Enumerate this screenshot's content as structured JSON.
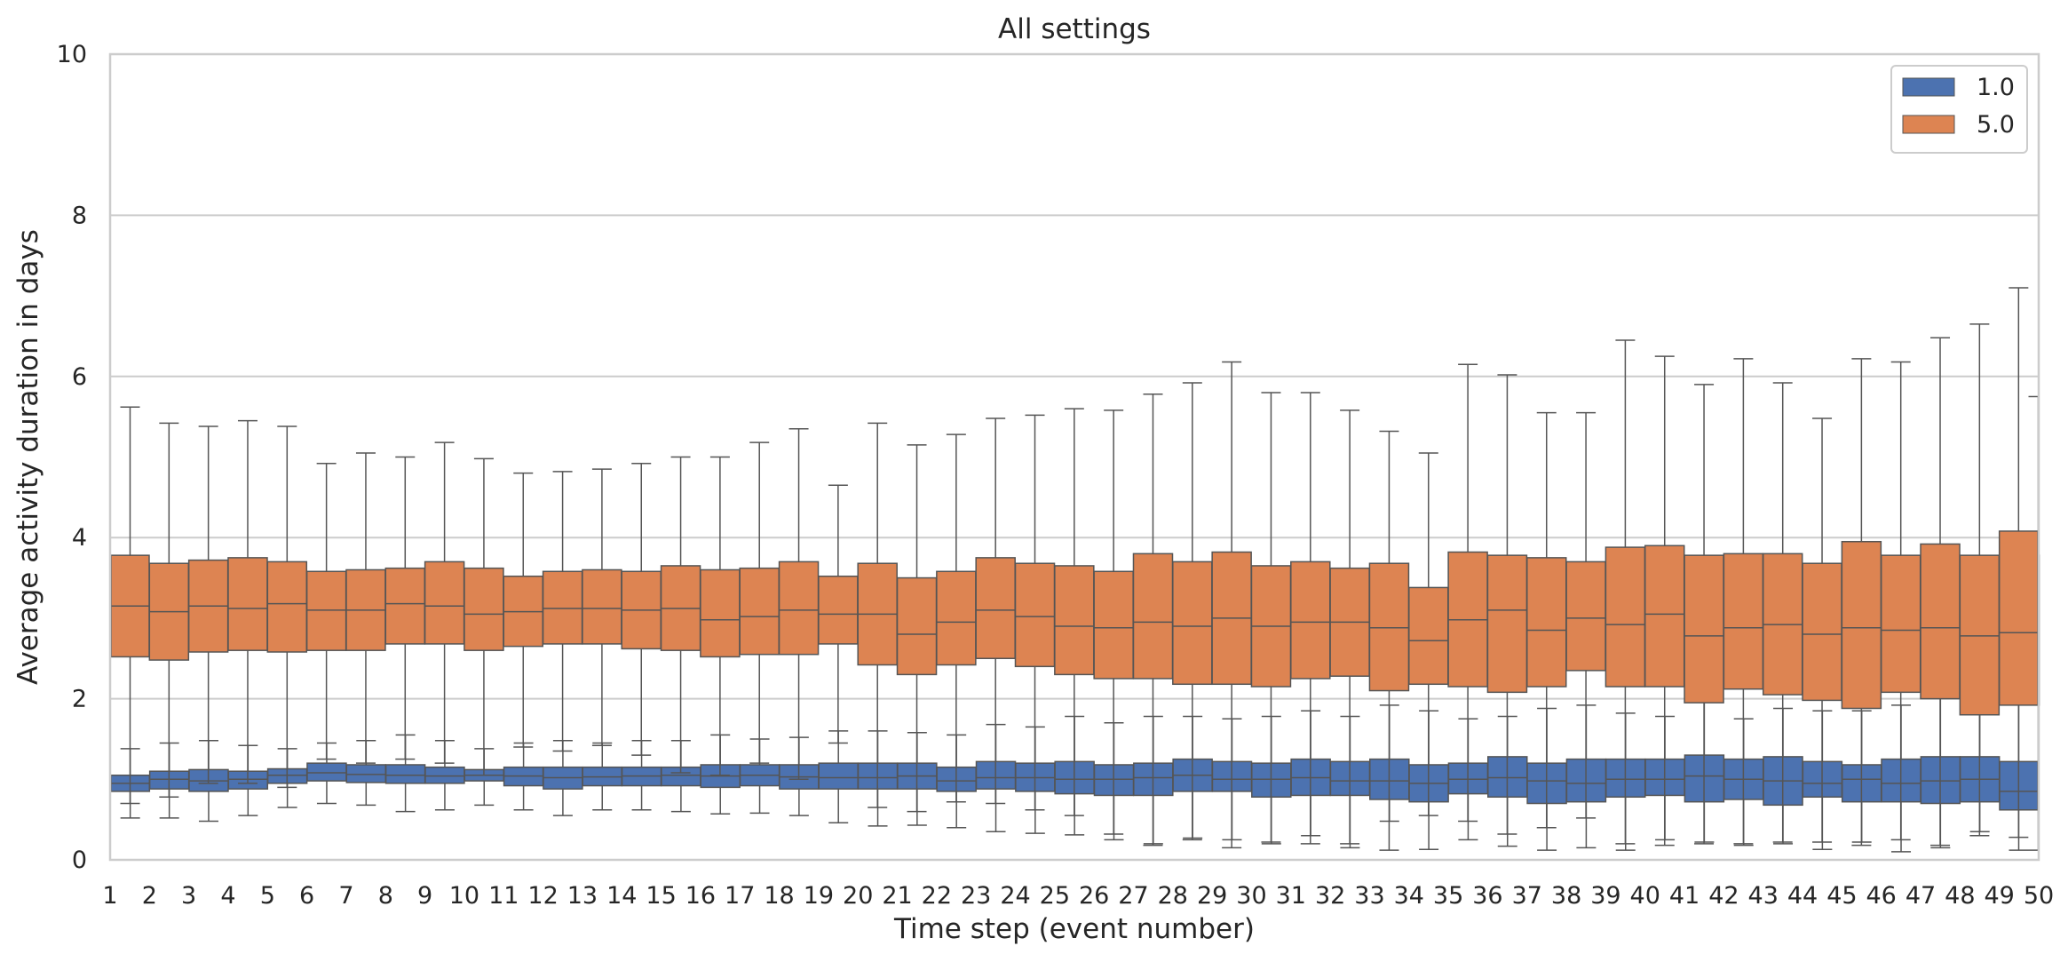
{
  "chart_data": {
    "type": "box",
    "title": "All settings",
    "xlabel": "Time step (event number)",
    "ylabel": "Average activity duration in days",
    "ylim": [
      0,
      10
    ],
    "yticks": [
      0,
      2,
      4,
      6,
      8,
      10
    ],
    "grid": "horizontal",
    "legend_position": "top-right",
    "categories": [
      "1",
      "2",
      "3",
      "4",
      "5",
      "6",
      "7",
      "8",
      "9",
      "10",
      "11",
      "12",
      "13",
      "14",
      "15",
      "16",
      "17",
      "18",
      "19",
      "20",
      "21",
      "22",
      "23",
      "24",
      "25",
      "26",
      "27",
      "28",
      "29",
      "30",
      "31",
      "32",
      "33",
      "34",
      "35",
      "36",
      "37",
      "38",
      "39",
      "40",
      "41",
      "42",
      "43",
      "44",
      "45",
      "46",
      "47",
      "48",
      "49",
      "50"
    ],
    "series": [
      {
        "name": "1.0",
        "color": "#4c72b0",
        "whisker_low": [
          1.0,
          0.52,
          0.52,
          0.48,
          0.55,
          0.65,
          0.7,
          0.68,
          0.6,
          0.62,
          0.68,
          0.62,
          0.55,
          0.62,
          0.62,
          0.6,
          0.57,
          0.58,
          0.55,
          0.46,
          0.42,
          0.43,
          0.4,
          0.35,
          0.33,
          0.31,
          0.25,
          0.2,
          0.27,
          0.25,
          0.2,
          0.3,
          0.15,
          0.48,
          0.13,
          0.25,
          0.17,
          0.12,
          0.15,
          0.12,
          0.25,
          0.22,
          0.18,
          0.2,
          0.13,
          0.22,
          0.1,
          0.15,
          0.35,
          0.12
        ],
        "q1": [
          1.0,
          0.85,
          0.88,
          0.85,
          0.88,
          0.95,
          0.98,
          0.96,
          0.95,
          0.95,
          0.98,
          0.92,
          0.88,
          0.92,
          0.92,
          0.92,
          0.9,
          0.92,
          0.88,
          0.88,
          0.88,
          0.88,
          0.85,
          0.88,
          0.85,
          0.82,
          0.8,
          0.8,
          0.85,
          0.85,
          0.78,
          0.8,
          0.8,
          0.75,
          0.72,
          0.82,
          0.78,
          0.7,
          0.72,
          0.78,
          0.8,
          0.72,
          0.75,
          0.68,
          0.78,
          0.72,
          0.72,
          0.7,
          0.72,
          0.62
        ],
        "median": [
          1.0,
          0.95,
          1.0,
          0.98,
          1.0,
          1.05,
          1.08,
          1.06,
          1.05,
          1.04,
          1.05,
          1.04,
          1.02,
          1.03,
          1.04,
          1.05,
          1.04,
          1.05,
          1.03,
          1.02,
          1.02,
          1.04,
          0.98,
          1.02,
          1.02,
          1.0,
          1.0,
          1.02,
          1.05,
          1.0,
          1.0,
          1.02,
          0.98,
          0.98,
          0.95,
          1.0,
          1.02,
          0.98,
          0.95,
          1.0,
          1.0,
          1.04,
          1.0,
          0.98,
          0.95,
          1.0,
          0.95,
          0.98,
          1.0,
          0.85
        ],
        "q3": [
          1.0,
          1.05,
          1.1,
          1.12,
          1.1,
          1.13,
          1.2,
          1.18,
          1.18,
          1.15,
          1.12,
          1.15,
          1.15,
          1.15,
          1.15,
          1.15,
          1.18,
          1.18,
          1.18,
          1.2,
          1.2,
          1.2,
          1.15,
          1.22,
          1.2,
          1.22,
          1.18,
          1.2,
          1.25,
          1.22,
          1.2,
          1.25,
          1.22,
          1.25,
          1.18,
          1.2,
          1.28,
          1.2,
          1.25,
          1.25,
          1.25,
          1.3,
          1.25,
          1.28,
          1.22,
          1.18,
          1.25,
          1.28,
          1.28,
          1.22
        ],
        "whisker_high": [
          1.0,
          1.38,
          1.45,
          1.48,
          1.42,
          1.38,
          1.45,
          1.48,
          1.55,
          1.48,
          1.38,
          1.45,
          1.48,
          1.45,
          1.48,
          1.48,
          1.55,
          1.5,
          1.52,
          1.6,
          1.6,
          1.58,
          1.55,
          1.68,
          1.65,
          1.78,
          1.7,
          1.78,
          1.78,
          1.75,
          1.78,
          1.85,
          1.78,
          1.92,
          1.85,
          1.75,
          1.78,
          1.88,
          1.92,
          1.82,
          1.78,
          2.0,
          1.75,
          1.88,
          1.85,
          1.85,
          1.92,
          2.02,
          2.05,
          1.95
        ]
      },
      {
        "name": "5.0",
        "color": "#dd8452",
        "whisker_low": [
          0.7,
          0.78,
          0.95,
          0.95,
          0.9,
          1.25,
          1.2,
          1.25,
          1.2,
          1.05,
          1.4,
          1.35,
          1.42,
          1.3,
          1.08,
          1.05,
          1.2,
          1.0,
          1.45,
          0.65,
          0.6,
          0.72,
          0.7,
          0.62,
          0.55,
          0.32,
          0.18,
          0.25,
          0.15,
          0.22,
          0.2,
          0.2,
          0.12,
          0.55,
          0.48,
          0.32,
          0.4,
          0.52,
          0.2,
          0.18,
          0.2,
          0.2,
          0.22,
          0.22,
          0.18,
          0.25,
          0.18,
          0.3,
          0.28,
          0.12
        ],
        "q1": [
          2.52,
          2.48,
          2.58,
          2.6,
          2.58,
          2.6,
          2.6,
          2.68,
          2.68,
          2.6,
          2.65,
          2.68,
          2.68,
          2.62,
          2.6,
          2.52,
          2.55,
          2.55,
          2.68,
          2.42,
          2.3,
          2.42,
          2.5,
          2.4,
          2.3,
          2.25,
          2.25,
          2.18,
          2.18,
          2.15,
          2.25,
          2.28,
          2.1,
          2.18,
          2.15,
          2.08,
          2.15,
          2.35,
          2.15,
          2.15,
          1.95,
          2.12,
          2.05,
          1.98,
          1.88,
          2.08,
          2.0,
          1.8,
          1.92,
          1.92
        ],
        "median": [
          3.15,
          3.08,
          3.15,
          3.12,
          3.18,
          3.1,
          3.1,
          3.18,
          3.15,
          3.05,
          3.08,
          3.12,
          3.12,
          3.1,
          3.12,
          2.98,
          3.02,
          3.1,
          3.05,
          3.05,
          2.8,
          2.95,
          3.1,
          3.02,
          2.9,
          2.88,
          2.95,
          2.9,
          3.0,
          2.9,
          2.95,
          2.95,
          2.88,
          2.72,
          2.98,
          3.1,
          2.85,
          3.0,
          2.92,
          3.05,
          2.78,
          2.88,
          2.92,
          2.8,
          2.88,
          2.85,
          2.88,
          2.78,
          2.82,
          2.82
        ],
        "q3": [
          3.78,
          3.68,
          3.72,
          3.75,
          3.7,
          3.58,
          3.6,
          3.62,
          3.7,
          3.62,
          3.52,
          3.58,
          3.6,
          3.58,
          3.65,
          3.6,
          3.62,
          3.7,
          3.52,
          3.68,
          3.5,
          3.58,
          3.75,
          3.68,
          3.65,
          3.58,
          3.8,
          3.7,
          3.82,
          3.65,
          3.7,
          3.62,
          3.68,
          3.38,
          3.82,
          3.78,
          3.75,
          3.7,
          3.88,
          3.9,
          3.78,
          3.8,
          3.8,
          3.68,
          3.95,
          3.78,
          3.92,
          3.78,
          4.08,
          3.78
        ],
        "whisker_high": [
          5.62,
          5.42,
          5.38,
          5.45,
          5.38,
          4.92,
          5.05,
          5.0,
          5.18,
          4.98,
          4.8,
          4.82,
          4.85,
          4.92,
          5.0,
          5.0,
          5.18,
          5.35,
          4.65,
          5.42,
          5.15,
          5.28,
          5.48,
          5.52,
          5.6,
          5.58,
          5.78,
          5.92,
          6.18,
          5.8,
          5.8,
          5.58,
          5.32,
          5.05,
          6.15,
          6.02,
          5.55,
          5.55,
          6.45,
          6.25,
          5.9,
          6.22,
          5.92,
          5.48,
          6.22,
          6.18,
          6.48,
          6.65,
          7.1,
          5.75
        ]
      }
    ]
  }
}
